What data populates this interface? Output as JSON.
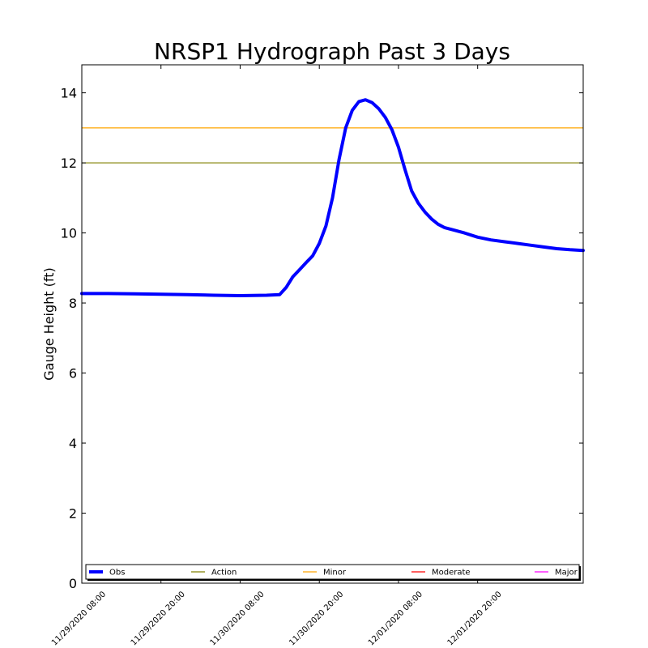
{
  "chart_data": {
    "type": "line",
    "title": "NRSP1 Hydrograph Past 3 Days",
    "xlabel": "",
    "ylabel": "Gauge Height (ft)",
    "ylim": [
      0,
      14.8
    ],
    "yticks": [
      0,
      2,
      4,
      6,
      8,
      10,
      12,
      14
    ],
    "x_range": [
      "11/29/2020 08:00",
      "12/02/2020 12:00"
    ],
    "xticks": [
      "11/29/2020 08:00",
      "11/29/2020 20:00",
      "11/30/2020 08:00",
      "11/30/2020 20:00",
      "12/01/2020 08:00",
      "12/01/2020 20:00"
    ],
    "grid": false,
    "legend_position": "bottom",
    "series": [
      {
        "name": "Obs",
        "color": "#0000ff",
        "x": [
          "11/29/2020 08:00",
          "11/29/2020 12:00",
          "11/29/2020 16:00",
          "11/29/2020 20:00",
          "11/30/2020 00:00",
          "11/30/2020 04:00",
          "11/30/2020 08:00",
          "11/30/2020 12:00",
          "11/30/2020 14:00",
          "11/30/2020 15:00",
          "11/30/2020 16:00",
          "11/30/2020 17:00",
          "11/30/2020 18:00",
          "11/30/2020 19:00",
          "11/30/2020 20:00",
          "11/30/2020 21:00",
          "11/30/2020 22:00",
          "11/30/2020 23:00",
          "12/01/2020 00:00",
          "12/01/2020 01:00",
          "12/01/2020 02:00",
          "12/01/2020 03:00",
          "12/01/2020 04:00",
          "12/01/2020 05:00",
          "12/01/2020 06:00",
          "12/01/2020 07:00",
          "12/01/2020 08:00",
          "12/01/2020 09:00",
          "12/01/2020 10:00",
          "12/01/2020 11:00",
          "12/01/2020 12:00",
          "12/01/2020 13:00",
          "12/01/2020 14:00",
          "12/01/2020 15:00",
          "12/01/2020 16:00",
          "12/01/2020 18:00",
          "12/01/2020 20:00",
          "12/01/2020 22:00",
          "12/02/2020 00:00",
          "12/02/2020 02:00",
          "12/02/2020 04:00",
          "12/02/2020 06:00",
          "12/02/2020 08:00",
          "12/02/2020 10:00",
          "12/02/2020 12:00"
        ],
        "y": [
          8.27,
          8.27,
          8.26,
          8.25,
          8.24,
          8.22,
          8.21,
          8.22,
          8.24,
          8.45,
          8.75,
          8.95,
          9.15,
          9.35,
          9.7,
          10.2,
          11.0,
          12.1,
          13.0,
          13.5,
          13.75,
          13.8,
          13.72,
          13.55,
          13.3,
          12.95,
          12.45,
          11.8,
          11.2,
          10.85,
          10.6,
          10.4,
          10.25,
          10.15,
          10.1,
          10.0,
          9.88,
          9.8,
          9.75,
          9.7,
          9.65,
          9.6,
          9.55,
          9.52,
          9.5
        ]
      }
    ],
    "thresholds": [
      {
        "name": "Action",
        "color": "#808000",
        "value": 12
      },
      {
        "name": "Minor",
        "color": "#ffa500",
        "value": 13
      },
      {
        "name": "Moderate",
        "color": "#ff0000",
        "value": null
      },
      {
        "name": "Major",
        "color": "#ff00ff",
        "value": null
      }
    ],
    "legend": [
      "Obs",
      "Action",
      "Minor",
      "Moderate",
      "Major"
    ]
  }
}
